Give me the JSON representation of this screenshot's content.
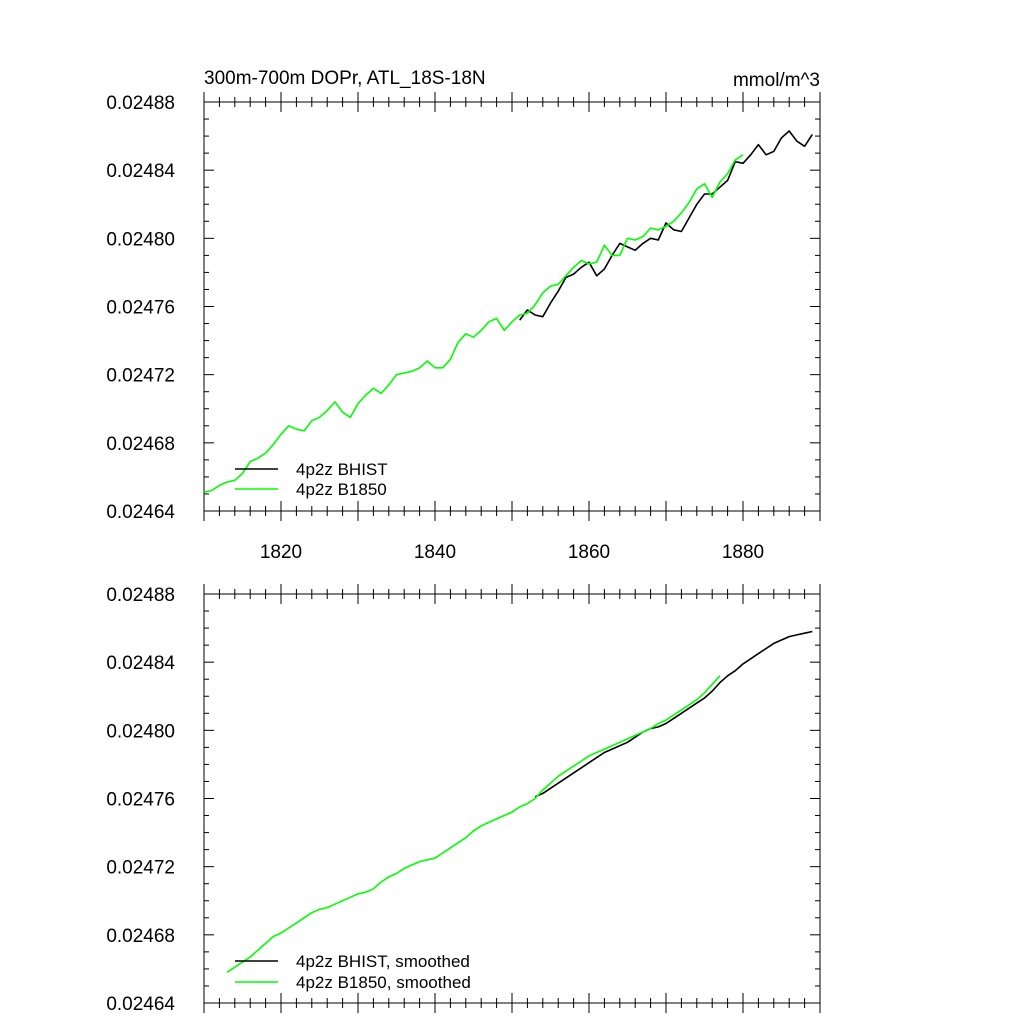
{
  "chart_data": [
    {
      "type": "line",
      "title": "300m-700m DOPr, ATL_18S-18N",
      "units": "mmol/m^3",
      "xlim": [
        1810,
        1890
      ],
      "ylim": [
        0.02464,
        0.02488
      ],
      "yticks": [
        "0.02464",
        "0.02468",
        "0.02472",
        "0.02476",
        "0.02480",
        "0.02484",
        "0.02488"
      ],
      "xticks": [
        "1820",
        "1840",
        "1860",
        "1880"
      ],
      "legend_position": "bottom-left",
      "series": [
        {
          "name": "4p2z BHIST",
          "color": "#000000",
          "x": [
            1851,
            1852,
            1853,
            1854,
            1855,
            1856,
            1857,
            1858,
            1859,
            1860,
            1861,
            1862,
            1863,
            1864,
            1865,
            1866,
            1867,
            1868,
            1869,
            1870,
            1871,
            1872,
            1873,
            1874,
            1875,
            1876,
            1877,
            1878,
            1879,
            1880,
            1881,
            1882,
            1883,
            1884,
            1885,
            1886,
            1887,
            1888,
            1889
          ],
          "y": [
            0.024752,
            0.024758,
            0.024755,
            0.024754,
            0.024762,
            0.024769,
            0.024777,
            0.024779,
            0.024783,
            0.024786,
            0.024778,
            0.024782,
            0.02479,
            0.024797,
            0.024795,
            0.024793,
            0.024797,
            0.0248,
            0.024799,
            0.024809,
            0.024805,
            0.024804,
            0.024812,
            0.02482,
            0.024826,
            0.024826,
            0.02483,
            0.024834,
            0.024845,
            0.024844,
            0.024849,
            0.024855,
            0.024849,
            0.024851,
            0.024859,
            0.024863,
            0.024857,
            0.024854,
            0.024861
          ]
        },
        {
          "name": "4p2z B1850",
          "color": "#00ff00",
          "x": [
            1810,
            1811,
            1812,
            1813,
            1814,
            1815,
            1816,
            1817,
            1818,
            1819,
            1820,
            1821,
            1822,
            1823,
            1824,
            1825,
            1826,
            1827,
            1828,
            1829,
            1830,
            1831,
            1832,
            1833,
            1834,
            1835,
            1836,
            1837,
            1838,
            1839,
            1840,
            1841,
            1842,
            1843,
            1844,
            1845,
            1846,
            1847,
            1848,
            1849,
            1850,
            1851,
            1852,
            1853,
            1854,
            1855,
            1856,
            1857,
            1858,
            1859,
            1860,
            1861,
            1862,
            1863,
            1864,
            1865,
            1866,
            1867,
            1868,
            1869,
            1870,
            1871,
            1872,
            1873,
            1874,
            1875,
            1876,
            1877,
            1878,
            1879,
            1880
          ],
          "y": [
            0.024651,
            0.024652,
            0.024655,
            0.024657,
            0.024658,
            0.024662,
            0.024669,
            0.024671,
            0.024674,
            0.024679,
            0.024685,
            0.02469,
            0.024688,
            0.024687,
            0.024693,
            0.024695,
            0.024699,
            0.024704,
            0.024698,
            0.024695,
            0.024703,
            0.024708,
            0.024712,
            0.024709,
            0.024714,
            0.02472,
            0.024721,
            0.024722,
            0.024724,
            0.024728,
            0.024724,
            0.024724,
            0.024729,
            0.024739,
            0.024744,
            0.024742,
            0.024746,
            0.024751,
            0.024753,
            0.024746,
            0.024751,
            0.024755,
            0.024756,
            0.024761,
            0.024768,
            0.024772,
            0.024773,
            0.024778,
            0.024783,
            0.024787,
            0.024785,
            0.024786,
            0.024796,
            0.02479,
            0.02479,
            0.0248,
            0.024799,
            0.024801,
            0.024806,
            0.024805,
            0.024807,
            0.02481,
            0.024815,
            0.024821,
            0.024829,
            0.024832,
            0.024824,
            0.024833,
            0.024838,
            0.024846,
            0.024849
          ]
        }
      ]
    },
    {
      "type": "line",
      "title": "",
      "xlim": [
        1810,
        1890
      ],
      "ylim": [
        0.02464,
        0.02488
      ],
      "yticks": [
        "0.02464",
        "0.02468",
        "0.02472",
        "0.02476",
        "0.02480",
        "0.02484",
        "0.02488"
      ],
      "xticks": [],
      "legend_position": "bottom-left",
      "series": [
        {
          "name": "4p2z BHIST, smoothed",
          "color": "#000000",
          "x": [
            1853,
            1854,
            1855,
            1856,
            1857,
            1858,
            1859,
            1860,
            1861,
            1862,
            1863,
            1864,
            1865,
            1866,
            1867,
            1868,
            1869,
            1870,
            1871,
            1872,
            1873,
            1874,
            1875,
            1876,
            1877,
            1878,
            1879,
            1880,
            1881,
            1882,
            1883,
            1884,
            1885,
            1886,
            1887,
            1888,
            1889
          ],
          "y": [
            0.024761,
            0.024763,
            0.024766,
            0.024769,
            0.024772,
            0.024775,
            0.024778,
            0.024781,
            0.024784,
            0.024787,
            0.024789,
            0.024791,
            0.024793,
            0.024796,
            0.024799,
            0.024801,
            0.024802,
            0.024804,
            0.024807,
            0.02481,
            0.024813,
            0.024816,
            0.024819,
            0.024823,
            0.024828,
            0.024832,
            0.024835,
            0.024839,
            0.024842,
            0.024845,
            0.024848,
            0.024851,
            0.024853,
            0.024855,
            0.024856,
            0.024857,
            0.024858
          ]
        },
        {
          "name": "4p2z B1850, smoothed",
          "color": "#00ff00",
          "x": [
            1813,
            1814,
            1815,
            1816,
            1817,
            1818,
            1819,
            1820,
            1821,
            1822,
            1823,
            1824,
            1825,
            1826,
            1827,
            1828,
            1829,
            1830,
            1831,
            1832,
            1833,
            1834,
            1835,
            1836,
            1837,
            1838,
            1839,
            1840,
            1841,
            1842,
            1843,
            1844,
            1845,
            1846,
            1847,
            1848,
            1849,
            1850,
            1851,
            1852,
            1853,
            1854,
            1855,
            1856,
            1857,
            1858,
            1859,
            1860,
            1861,
            1862,
            1863,
            1864,
            1865,
            1866,
            1867,
            1868,
            1869,
            1870,
            1871,
            1872,
            1873,
            1874,
            1875,
            1876,
            1877
          ],
          "y": [
            0.024658,
            0.024661,
            0.024664,
            0.024667,
            0.024671,
            0.024675,
            0.024679,
            0.024681,
            0.024684,
            0.024687,
            0.02469,
            0.024693,
            0.024695,
            0.024696,
            0.024698,
            0.0247,
            0.024702,
            0.024704,
            0.024705,
            0.024707,
            0.024711,
            0.024714,
            0.024716,
            0.024719,
            0.024721,
            0.024723,
            0.024724,
            0.024725,
            0.024728,
            0.024731,
            0.024734,
            0.024737,
            0.024741,
            0.024744,
            0.024746,
            0.024748,
            0.02475,
            0.024752,
            0.024755,
            0.024757,
            0.02476,
            0.024765,
            0.024769,
            0.024773,
            0.024776,
            0.024779,
            0.024782,
            0.024785,
            0.024787,
            0.024789,
            0.024791,
            0.024793,
            0.024795,
            0.024797,
            0.024799,
            0.024801,
            0.024804,
            0.024806,
            0.024809,
            0.024812,
            0.024815,
            0.024818,
            0.024822,
            0.024827,
            0.024832
          ]
        }
      ]
    }
  ]
}
